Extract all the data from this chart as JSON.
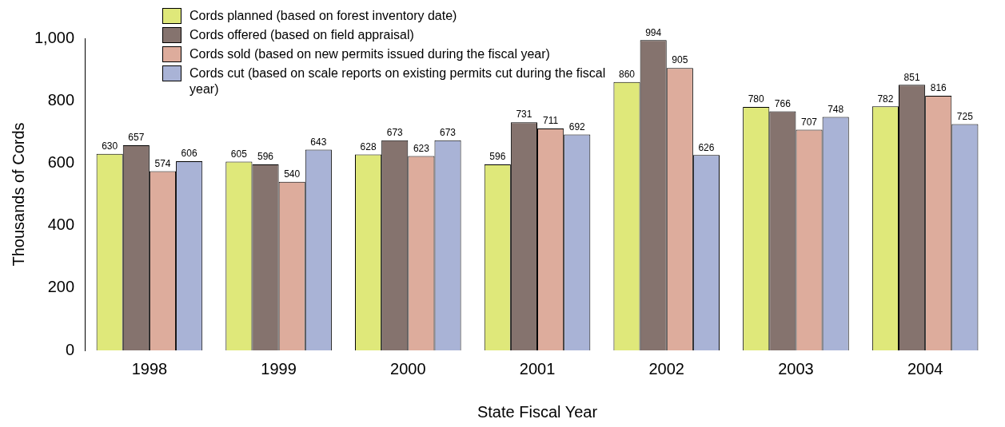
{
  "chart_data": {
    "type": "bar",
    "xlabel": "State Fiscal Year",
    "ylabel": "Thousands of Cords",
    "categories": [
      "1998",
      "1999",
      "2000",
      "2001",
      "2002",
      "2003",
      "2004"
    ],
    "series": [
      {
        "name": "Cords planned (based on forest inventory date)",
        "color": "#dfe87a",
        "values": [
          630,
          605,
          628,
          596,
          860,
          780,
          782
        ]
      },
      {
        "name": "Cords offered (based on field appraisal)",
        "color": "#85736e",
        "values": [
          657,
          596,
          673,
          731,
          994,
          766,
          851
        ]
      },
      {
        "name": "Cords sold (based on new permits issued during the fiscal year)",
        "color": "#ddac9c",
        "values": [
          574,
          540,
          623,
          711,
          905,
          707,
          816
        ]
      },
      {
        "name": "Cords cut (based on scale reports on existing permits cut during the fiscal year)",
        "color": "#a9b3d6",
        "values": [
          606,
          643,
          673,
          692,
          626,
          748,
          725
        ]
      }
    ],
    "ylim": [
      0,
      1000
    ],
    "yticks": [
      0,
      200,
      400,
      600,
      800,
      {
        "value": 1000,
        "label": "1,000"
      }
    ],
    "grid": false,
    "legend": "top left",
    "data_labels": true
  }
}
